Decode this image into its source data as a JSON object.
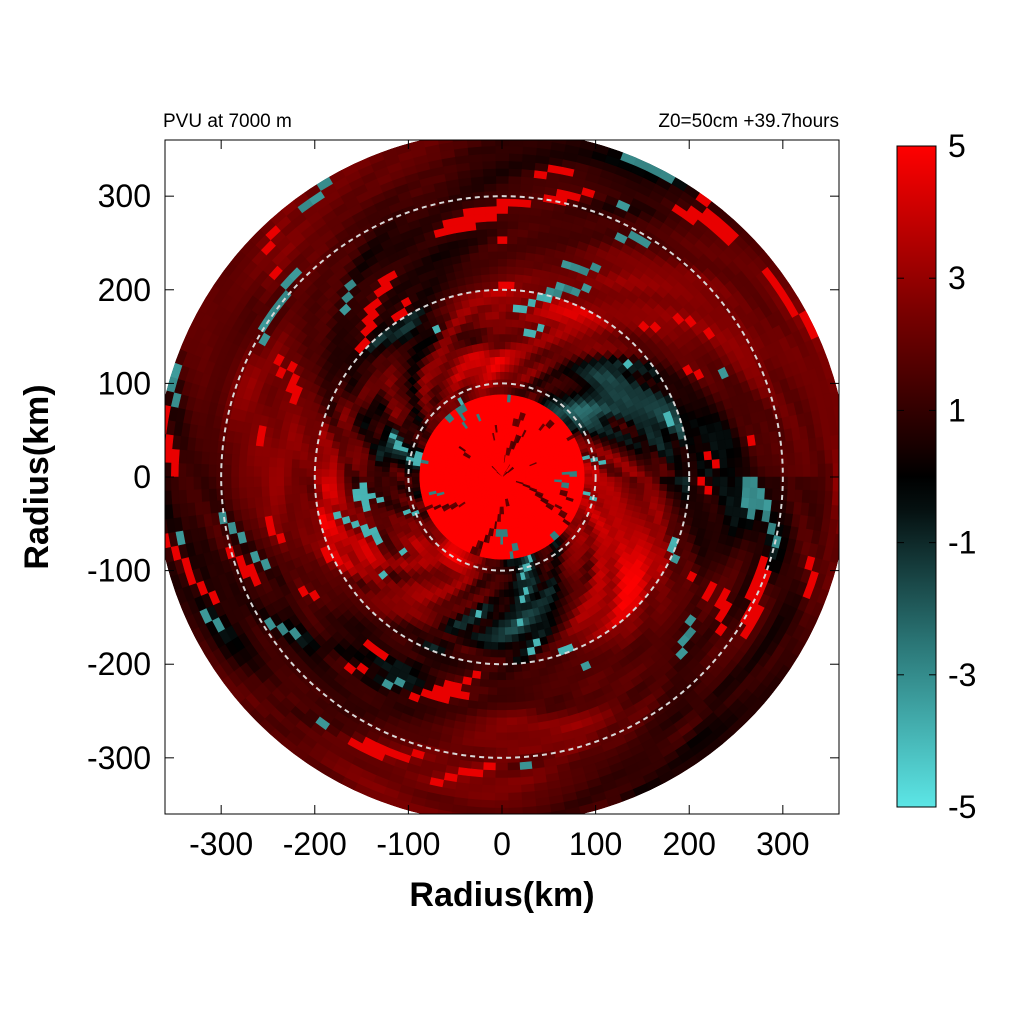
{
  "header": {
    "left_title": "PVU at  7000 m",
    "right_title": "Z0=50cm  +39.7hours"
  },
  "chart_data": {
    "type": "heatmap",
    "variable": "potential vorticity (PVU)",
    "projection": "polar disk sampled on a radius-radius grid, centered at storm center",
    "xlabel": "Radius(km)",
    "ylabel": "Radius(km)",
    "xlim": [
      -360,
      360
    ],
    "ylim": [
      -360,
      360
    ],
    "xticks": [
      -300,
      -200,
      -100,
      0,
      100,
      200,
      300
    ],
    "yticks": [
      300,
      200,
      100,
      0,
      -100,
      -200,
      -300
    ],
    "data_radius_km": 370,
    "reference_circles_km": [
      100,
      200,
      300
    ],
    "reference_circle_style": "dashed light gray",
    "colorbar": {
      "min": -5,
      "max": 5,
      "ticks": [
        5,
        3,
        1,
        -1,
        -3,
        -5
      ],
      "colors": {
        "low": "#5ce6e6",
        "mid": "#000000",
        "high": "#ff0000"
      }
    },
    "approximate_field": {
      "core": "values saturated near +5 PVU within about 0-90 km radius",
      "inner_ring": "mixed bands of +3 to +5 PVU with scattered cyan patches of about -2 to -5 PVU between 100 and 200 km",
      "outer_region": "dark red background of about +1 to +2 PVU with red streaks and cyan patches of about -1 to -4 PVU between 200 and 370 km"
    }
  }
}
